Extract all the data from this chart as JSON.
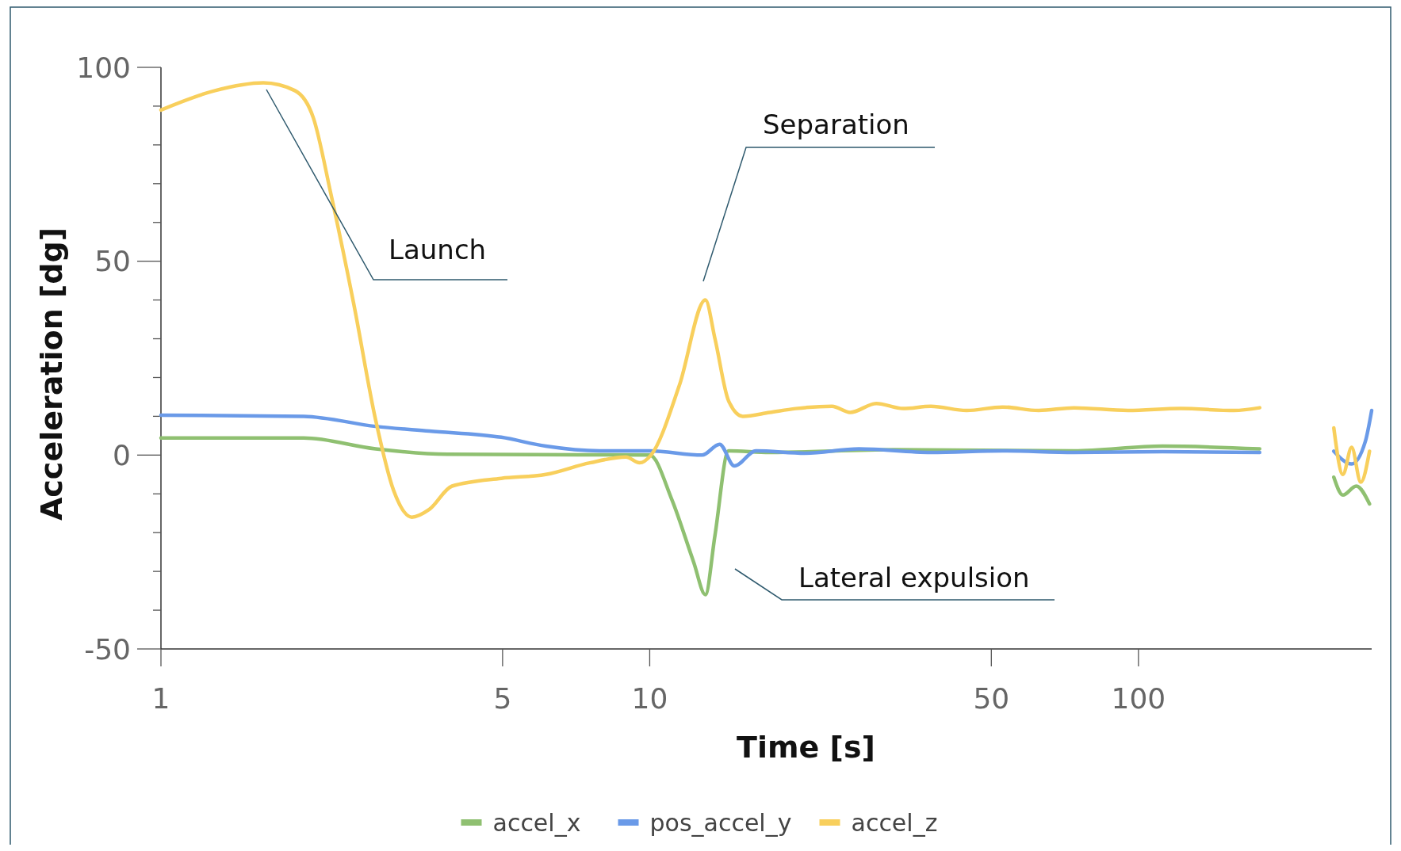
{
  "chart_data": {
    "type": "line",
    "xlabel": "Time [s]",
    "ylabel": "Acceleration [dg]",
    "log": "x",
    "xlim": [
      1,
      300
    ],
    "xticks": [
      1,
      5,
      10,
      50,
      100
    ],
    "ylim": [
      -50,
      100
    ],
    "yticks": [
      -50,
      {
        "value": -40,
        "label": null
      },
      {
        "value": -30,
        "label": null
      },
      {
        "value": -20,
        "label": null
      },
      {
        "value": -10,
        "label": null
      },
      0,
      {
        "value": 10,
        "label": null
      },
      {
        "value": 20,
        "label": null
      },
      {
        "value": 30,
        "label": null
      },
      {
        "value": 40,
        "label": null
      },
      50,
      {
        "value": 60,
        "label": null
      },
      {
        "value": 70,
        "label": null
      },
      {
        "value": 80,
        "label": null
      },
      {
        "value": 90,
        "label": null
      },
      100
    ],
    "grid": false,
    "legend": "bottom",
    "marker": "none",
    "line_style": "solid",
    "series": [
      {
        "name": "accel_x",
        "color": "#8fc071",
        "x": [
          1,
          1.96,
          2.75,
          3.85,
          10,
          11.1,
          12.3,
          13,
          13.6,
          14.5,
          17.6,
          31.6,
          73.8,
          112,
          177,
          200,
          251,
          262,
          279,
          297
        ],
        "values": [
          4.4,
          4.4,
          1.6,
          0.2,
          0,
          -11.5,
          -27.6,
          -36,
          -20.7,
          1.1,
          0.7,
          1.4,
          1.1,
          2.3,
          1.6,
          null,
          -5.7,
          -10.3,
          -8,
          -12.6
        ]
      },
      {
        "name": "pos_accel_y",
        "color": "#6a9ae8",
        "x": [
          1,
          1.96,
          2.75,
          3.54,
          4.97,
          6.13,
          7.89,
          10,
          12.8,
          13.9,
          14.9,
          16.5,
          20.8,
          26.8,
          37.6,
          52.7,
          73.8,
          112,
          177,
          200,
          251,
          273,
          291,
          300
        ],
        "values": [
          10.3,
          10,
          7.4,
          6.2,
          4.6,
          2.3,
          1.1,
          1.1,
          0,
          2.8,
          -2.8,
          1.1,
          0.5,
          1.6,
          0.7,
          1.1,
          0.7,
          0.9,
          0.7,
          null,
          1,
          -2.3,
          3.4,
          11.5
        ]
      },
      {
        "name": "accel_z",
        "color": "#f8cf5c",
        "x": [
          1,
          1.29,
          1.62,
          1.88,
          2.05,
          2.23,
          2.48,
          2.75,
          2.99,
          3.26,
          3.54,
          3.94,
          4.97,
          6.13,
          7.54,
          8.94,
          9.53,
          10.06,
          11.5,
          13,
          13.6,
          14.5,
          15.5,
          17.6,
          19.9,
          23.6,
          25.7,
          29.1,
          33,
          37.6,
          44.5,
          52.7,
          62.5,
          73.8,
          95.2,
          122,
          157,
          177,
          200,
          251,
          262,
          273,
          285,
          297
        ],
        "values": [
          89,
          94,
          96,
          94,
          87,
          67,
          39,
          9,
          -9,
          -16,
          -14,
          -8,
          -6,
          -5,
          -2,
          -0.5,
          -2,
          0,
          18,
          40,
          30,
          14,
          10,
          11,
          12,
          12.6,
          11,
          13.3,
          12,
          12.6,
          11.5,
          12.4,
          11.5,
          12.2,
          11.5,
          12,
          11.5,
          12.2,
          null,
          7,
          -5,
          2,
          -7,
          1
        ]
      }
    ],
    "annotations": [
      "Launch",
      "Separation",
      "Lateral expulsion"
    ]
  }
}
